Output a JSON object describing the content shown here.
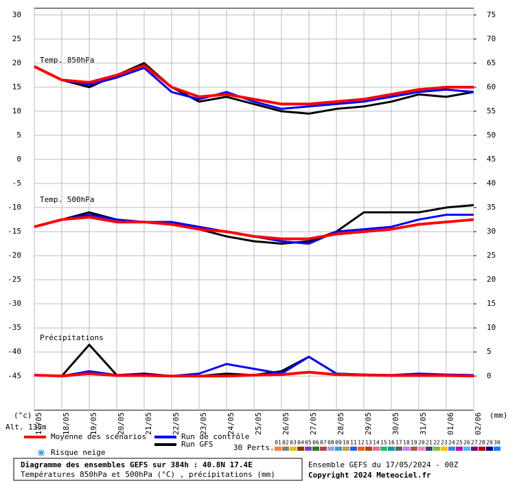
{
  "chart_data": {
    "type": "line",
    "x": [
      "17/05",
      "18/05",
      "19/05",
      "20/05",
      "21/05",
      "22/05",
      "23/05",
      "24/05",
      "25/05",
      "26/05",
      "27/05",
      "28/05",
      "29/05",
      "30/05",
      "31/05",
      "01/06",
      "02/06"
    ],
    "ylim": [
      -52.1,
      31.4
    ],
    "yticks": [
      30,
      25,
      20,
      15,
      10,
      5,
      0,
      -5,
      -10,
      -15,
      -20,
      -25,
      -30,
      -35,
      -40,
      -45
    ],
    "y2lim": [
      -7.1,
      76.4
    ],
    "y2ticks": [
      75,
      70,
      65,
      60,
      55,
      50,
      45,
      40,
      35,
      30,
      25,
      20,
      15,
      10,
      5,
      0
    ],
    "grid": true,
    "ylabel": "(°c)",
    "y2label": "(mm)",
    "altitude": "Alt. 135m",
    "panel_labels": [
      "Temp. 850hPa",
      "Temp. 500hPa",
      "Précipitations"
    ],
    "series": [
      {
        "name": "Moyenne des scénarios",
        "color": "#ff0000",
        "width": 4,
        "temp850": [
          19.3,
          16.5,
          16,
          17.5,
          19.5,
          15,
          13,
          13.5,
          12.5,
          11.5,
          11.5,
          12,
          12.5,
          13.5,
          14.5,
          15,
          15
        ],
        "temp500": [
          -14,
          -12.5,
          -12,
          -13,
          -13,
          -13.5,
          -14.5,
          -15,
          -16,
          -16.5,
          -16.5,
          -15.5,
          -15,
          -14.5,
          -13.5,
          -13,
          -12.5
        ],
        "precip": [
          0.2,
          0,
          0.5,
          0.1,
          0.1,
          0,
          0,
          0,
          0.2,
          0.3,
          0.8,
          0.3,
          0.2,
          0.1,
          0.1,
          0.1,
          0
        ]
      },
      {
        "name": "Run de contrôle",
        "color": "#0000ff",
        "width": 3,
        "temp850": [
          19.3,
          16.5,
          15.5,
          17,
          19,
          14,
          12.5,
          14,
          12,
          10.5,
          11,
          11.5,
          12,
          13,
          14,
          14.5,
          14
        ],
        "temp500": [
          -14,
          -12.5,
          -11.5,
          -12.5,
          -13,
          -13,
          -14,
          -15,
          -16,
          -17,
          -17.5,
          -15,
          -14.5,
          -14,
          -12.5,
          -11.5,
          -11.5
        ],
        "precip": [
          0.2,
          0,
          1,
          0.2,
          0.3,
          0,
          0.5,
          2.5,
          1.5,
          0.5,
          4,
          0.5,
          0.2,
          0.2,
          0.5,
          0.3,
          0.2
        ]
      },
      {
        "name": "Run GFS",
        "color": "#000000",
        "width": 3,
        "temp850": [
          19.3,
          16.5,
          15,
          17.5,
          20,
          15,
          12,
          13,
          11.5,
          10,
          9.5,
          10.5,
          11,
          12,
          13.5,
          13,
          14
        ],
        "temp500": [
          -14,
          -12.5,
          -11,
          -12.5,
          -13,
          -13,
          -14.5,
          -16,
          -17,
          -17.5,
          -17,
          -15,
          -11,
          -11,
          -11,
          -10,
          -9.5
        ],
        "precip": [
          0.2,
          0,
          6.5,
          0.2,
          0.5,
          0,
          0,
          0.5,
          0.2,
          1,
          4,
          0.5,
          0.3,
          0.2,
          0.1,
          0.2,
          0
        ]
      }
    ],
    "snow_label": "Risque neige",
    "perts_label": "30 Perts.",
    "perts": {
      "labels": [
        "01",
        "02",
        "03",
        "04",
        "05",
        "06",
        "07",
        "08",
        "09",
        "10",
        "11",
        "12",
        "13",
        "14",
        "15",
        "16",
        "17",
        "18",
        "19",
        "20",
        "21",
        "22",
        "23",
        "24",
        "25",
        "26",
        "27",
        "28",
        "29",
        "30"
      ],
      "colors": [
        "#ff8040",
        "#808080",
        "#e0c000",
        "#804000",
        "#8040c0",
        "#208020",
        "#c04040",
        "#a0a0ff",
        "#40a0c0",
        "#c0a040",
        "#2060ff",
        "#ff6000",
        "#a05010",
        "#ff60a0",
        "#20c060",
        "#00a0a0",
        "#606060",
        "#c080ff",
        "#a06040",
        "#ff80c0",
        "#404080",
        "#80c040",
        "#ffc000",
        "#4080ff",
        "#c000c0",
        "#40c0ff",
        "#800080",
        "#c00000",
        "#000080",
        "#0080ff"
      ]
    },
    "footer_title": "Diagramme des ensembles GEFS sur 384h : 40.8N 17.4E",
    "footer_subtitle": "Températures 850hPa et 500hPa (°C) , précipitations (mm)",
    "run_info": "Ensemble GEFS du 17/05/2024 - 00Z",
    "copyright": "Copyright 2024 Meteociel.fr"
  }
}
